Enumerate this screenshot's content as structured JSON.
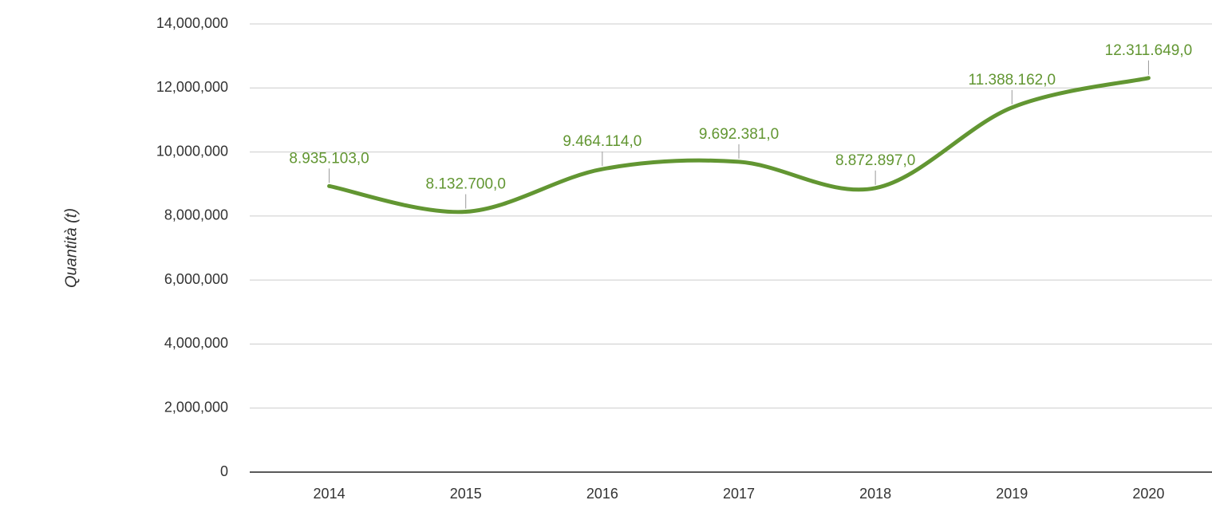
{
  "chart_data": {
    "type": "line",
    "y_label": "Quantità (t)",
    "categories": [
      "2014",
      "2015",
      "2016",
      "2017",
      "2018",
      "2019",
      "2020"
    ],
    "series": [
      {
        "color": "#629632",
        "values": [
          8935103,
          8132700,
          9464114,
          9692381,
          8872897,
          11388162,
          12311649
        ],
        "value_labels": [
          "8.935.103,0",
          "8.132.700,0",
          "9.464.114,0",
          "9.692.381,0",
          "8.872.897,0",
          "11.388.162,0",
          "12.311.649,0"
        ]
      }
    ],
    "ylim": [
      0,
      14000000
    ],
    "yticks": [
      0,
      {
        "value": 2000000,
        "label": "2,000,000"
      },
      {
        "value": 4000000,
        "label": "4,000,000"
      },
      {
        "value": 6000000,
        "label": "6,000,000"
      },
      {
        "value": 8000000,
        "label": "8,000,000"
      },
      {
        "value": 10000000,
        "label": "10,000,000"
      },
      {
        "value": 12000000,
        "label": "12,000,000"
      },
      {
        "value": 14000000,
        "label": "14,000,000"
      }
    ],
    "grid": true,
    "smooth": true
  }
}
